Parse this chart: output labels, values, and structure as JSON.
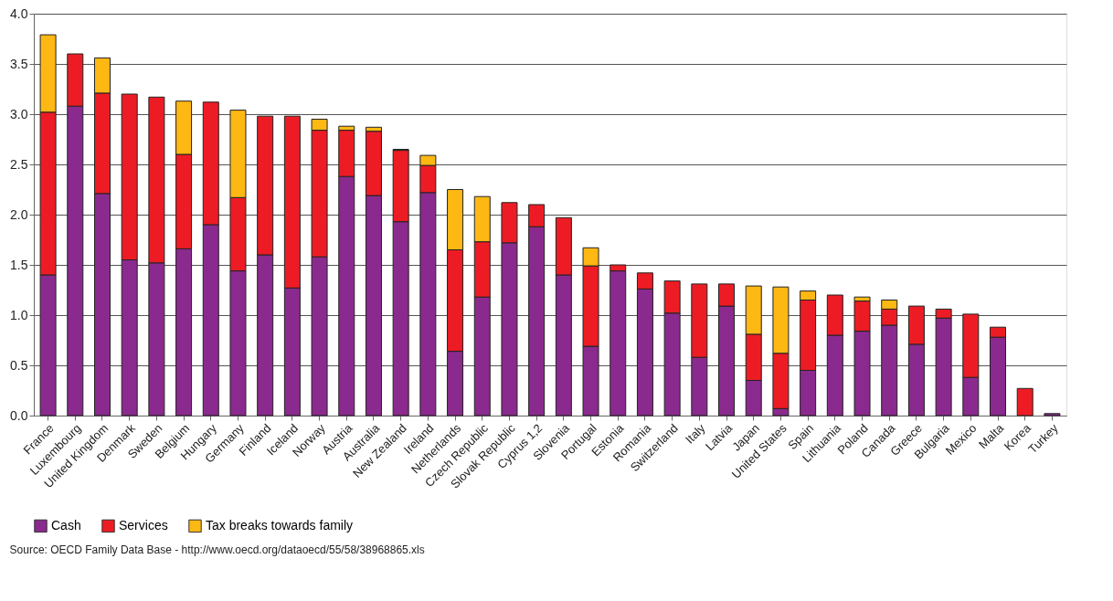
{
  "chart_data": {
    "type": "bar",
    "stacked": true,
    "categories": [
      "France",
      "Luxembourg",
      "United Kingdom",
      "Denmark",
      "Sweden",
      "Belgium",
      "Hungary",
      "Germany",
      "Finland",
      "Iceland",
      "Norway",
      "Austria",
      "Australia",
      "New Zealand",
      "Ireland",
      "Netherlands",
      "Czech Republic",
      "Slovak Republic",
      "Cyprus 1,2",
      "Slovenia",
      "Portugal",
      "Estonia",
      "Romania",
      "Switzerland",
      "Italy",
      "Latvia",
      "Japan",
      "United States",
      "Spain",
      "Lithuania",
      "Poland",
      "Canada",
      "Greece",
      "Bulgaria",
      "Mexico",
      "Malta",
      "Korea",
      "Turkey"
    ],
    "series": [
      {
        "name": "Cash",
        "color": "#8b2a8e",
        "values": [
          1.4,
          3.08,
          2.21,
          1.55,
          1.52,
          1.66,
          1.9,
          1.44,
          1.6,
          1.27,
          1.58,
          2.38,
          2.19,
          1.93,
          2.22,
          0.64,
          1.18,
          1.72,
          1.88,
          1.4,
          0.69,
          1.44,
          1.26,
          1.02,
          0.58,
          1.09,
          0.35,
          0.07,
          0.45,
          0.8,
          0.84,
          0.9,
          0.71,
          0.97,
          0.38,
          0.78,
          null,
          0.02
        ]
      },
      {
        "name": "Services",
        "color": "#ed1c24",
        "values": [
          1.62,
          0.52,
          1.0,
          1.65,
          1.65,
          0.94,
          1.22,
          0.73,
          1.38,
          1.71,
          1.26,
          0.46,
          0.64,
          0.71,
          0.27,
          1.01,
          0.55,
          0.4,
          0.22,
          0.57,
          0.8,
          0.06,
          0.16,
          0.32,
          0.73,
          0.22,
          0.46,
          0.55,
          0.7,
          0.4,
          0.3,
          0.16,
          0.38,
          0.09,
          0.63,
          0.1,
          0.27,
          null
        ]
      },
      {
        "name": "Tax breaks towards family",
        "color": "#fdb813",
        "values": [
          0.77,
          null,
          0.35,
          null,
          null,
          0.53,
          null,
          0.87,
          null,
          null,
          0.11,
          0.04,
          0.04,
          0.01,
          0.1,
          0.6,
          0.45,
          null,
          null,
          null,
          0.18,
          null,
          null,
          null,
          null,
          null,
          0.48,
          0.66,
          0.09,
          null,
          0.04,
          0.09,
          null,
          null,
          null,
          null,
          null,
          null
        ]
      }
    ],
    "ylim": [
      0,
      4.0
    ],
    "yticks": [
      {
        "value": 0,
        "label": "0.0"
      },
      {
        "value": 0.5,
        "label": "0.5"
      },
      {
        "value": 1,
        "label": "1.0"
      },
      {
        "value": 1.5,
        "label": "1.5"
      },
      {
        "value": 2,
        "label": "2.0"
      },
      {
        "value": 2.5,
        "label": "2.5"
      },
      {
        "value": 3,
        "label": "3.0"
      },
      {
        "value": 3.5,
        "label": "3.5"
      },
      {
        "value": 4,
        "label": "4.0"
      }
    ],
    "grid": "y",
    "legend": "bottom left",
    "annotations": [
      "Source: OECD Family Data Base - http://www.oecd.org/dataoecd/55/58/38968865.xls"
    ]
  }
}
